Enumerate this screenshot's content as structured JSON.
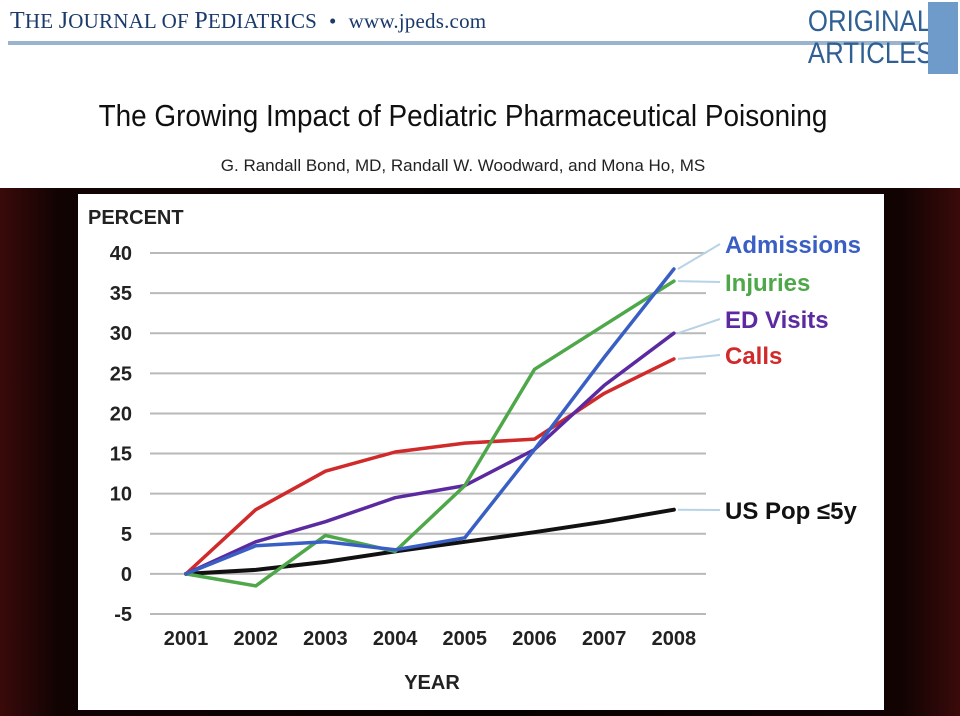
{
  "header": {
    "journal_the": "T",
    "journal_he": "HE ",
    "journal_j": "J",
    "journal_ournal_of": "OURNAL OF ",
    "journal_p": "P",
    "journal_ediatrics": "EDIATRICS",
    "bullet": "•",
    "url": "www.jpeds.com",
    "tag_line1": "ORIGINAL",
    "tag_line2": "ARTICLES"
  },
  "article": {
    "title": "The Growing Impact of Pediatric Pharmaceutical Poisoning",
    "authors": "G. Randall Bond, MD, Randall W. Woodward, and Mona Ho, MS"
  },
  "colors": {
    "header_blue": "#1a3a6b",
    "rule_blue": "#9ab3cf",
    "tag_blue": "#2f5f93",
    "tag_bar": "#6f9bca"
  },
  "chart_data": {
    "type": "line",
    "ylabel": "PERCENT",
    "xlabel": "YEAR",
    "x": [
      "2001",
      "2002",
      "2003",
      "2004",
      "2005",
      "2006",
      "2007",
      "2008"
    ],
    "y_ticks": [
      40,
      35,
      30,
      25,
      20,
      15,
      10,
      5,
      0,
      -5
    ],
    "ylim": [
      -5,
      40
    ],
    "grid": "horizontal",
    "legend": "right",
    "series": [
      {
        "name": "Admissions",
        "color": "#3a5fc4",
        "values": [
          0,
          3.5,
          4,
          3,
          4.5,
          15.5,
          27,
          38
        ]
      },
      {
        "name": "Injuries",
        "color": "#4ea84a",
        "values": [
          0,
          -1.5,
          4.8,
          2.8,
          11,
          25.5,
          31,
          36.5
        ]
      },
      {
        "name": "ED Visits",
        "color": "#5b2aa0",
        "values": [
          0,
          4,
          6.5,
          9.5,
          11,
          15.5,
          23.5,
          30
        ]
      },
      {
        "name": "Calls",
        "color": "#d02a2a",
        "values": [
          0,
          8,
          12.8,
          15.2,
          16.3,
          16.8,
          22.5,
          26.8
        ]
      },
      {
        "name": "US Pop ≤5y",
        "color": "#111111",
        "values": [
          0,
          0.5,
          1.5,
          2.8,
          4,
          5.2,
          6.5,
          8
        ]
      }
    ]
  }
}
